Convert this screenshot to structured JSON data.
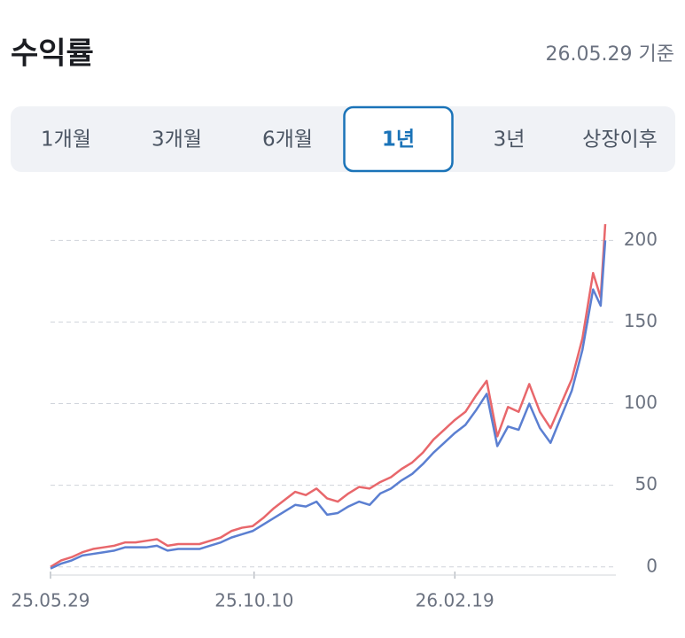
{
  "header": {
    "title": "수익률",
    "date": "26.05.29 기준"
  },
  "tabs": {
    "items": [
      "1개월",
      "3개월",
      "6개월",
      "1년",
      "3년",
      "상장이후"
    ],
    "selected": 3
  },
  "chart_data": {
    "type": "line",
    "x": [
      0,
      7,
      14,
      21,
      28,
      35,
      42,
      49,
      56,
      63,
      70,
      77,
      84,
      91,
      98,
      105,
      112,
      119,
      126,
      133,
      140,
      147,
      154,
      161,
      168,
      175,
      182,
      189,
      196,
      203,
      210,
      217,
      224,
      231,
      238,
      245,
      252,
      259,
      266,
      273,
      280,
      287,
      294,
      301,
      308,
      315,
      322,
      329,
      336,
      343,
      350,
      357,
      362,
      365
    ],
    "series": [
      {
        "color": "#e8676b",
        "values": [
          0,
          4,
          6,
          9,
          11,
          12,
          13,
          15,
          15,
          16,
          17,
          13,
          14,
          14,
          14,
          16,
          18,
          22,
          24,
          25,
          30,
          36,
          41,
          46,
          44,
          48,
          42,
          40,
          45,
          49,
          48,
          52,
          55,
          60,
          64,
          70,
          78,
          84,
          90,
          95,
          105,
          114,
          80,
          98,
          95,
          112,
          95,
          85,
          100,
          115,
          140,
          180,
          165,
          210
        ]
      },
      {
        "color": "#5b7fd1",
        "values": [
          -1,
          2,
          4,
          7,
          8,
          9,
          10,
          12,
          12,
          12,
          13,
          10,
          11,
          11,
          11,
          13,
          15,
          18,
          20,
          22,
          26,
          30,
          34,
          38,
          37,
          40,
          32,
          33,
          37,
          40,
          38,
          45,
          48,
          53,
          57,
          63,
          70,
          76,
          82,
          87,
          96,
          106,
          74,
          86,
          84,
          100,
          85,
          76,
          92,
          108,
          133,
          170,
          160,
          200
        ]
      }
    ],
    "xlim": [
      0,
      365
    ],
    "xticks": [
      {
        "value": 0,
        "label": "25.05.29"
      },
      {
        "value": 134,
        "label": "25.10.10"
      },
      {
        "value": 266,
        "label": "26.02.19"
      }
    ],
    "ylim": [
      -5,
      217
    ],
    "yticks": [
      0,
      50,
      100,
      150,
      200
    ],
    "grid": true
  }
}
